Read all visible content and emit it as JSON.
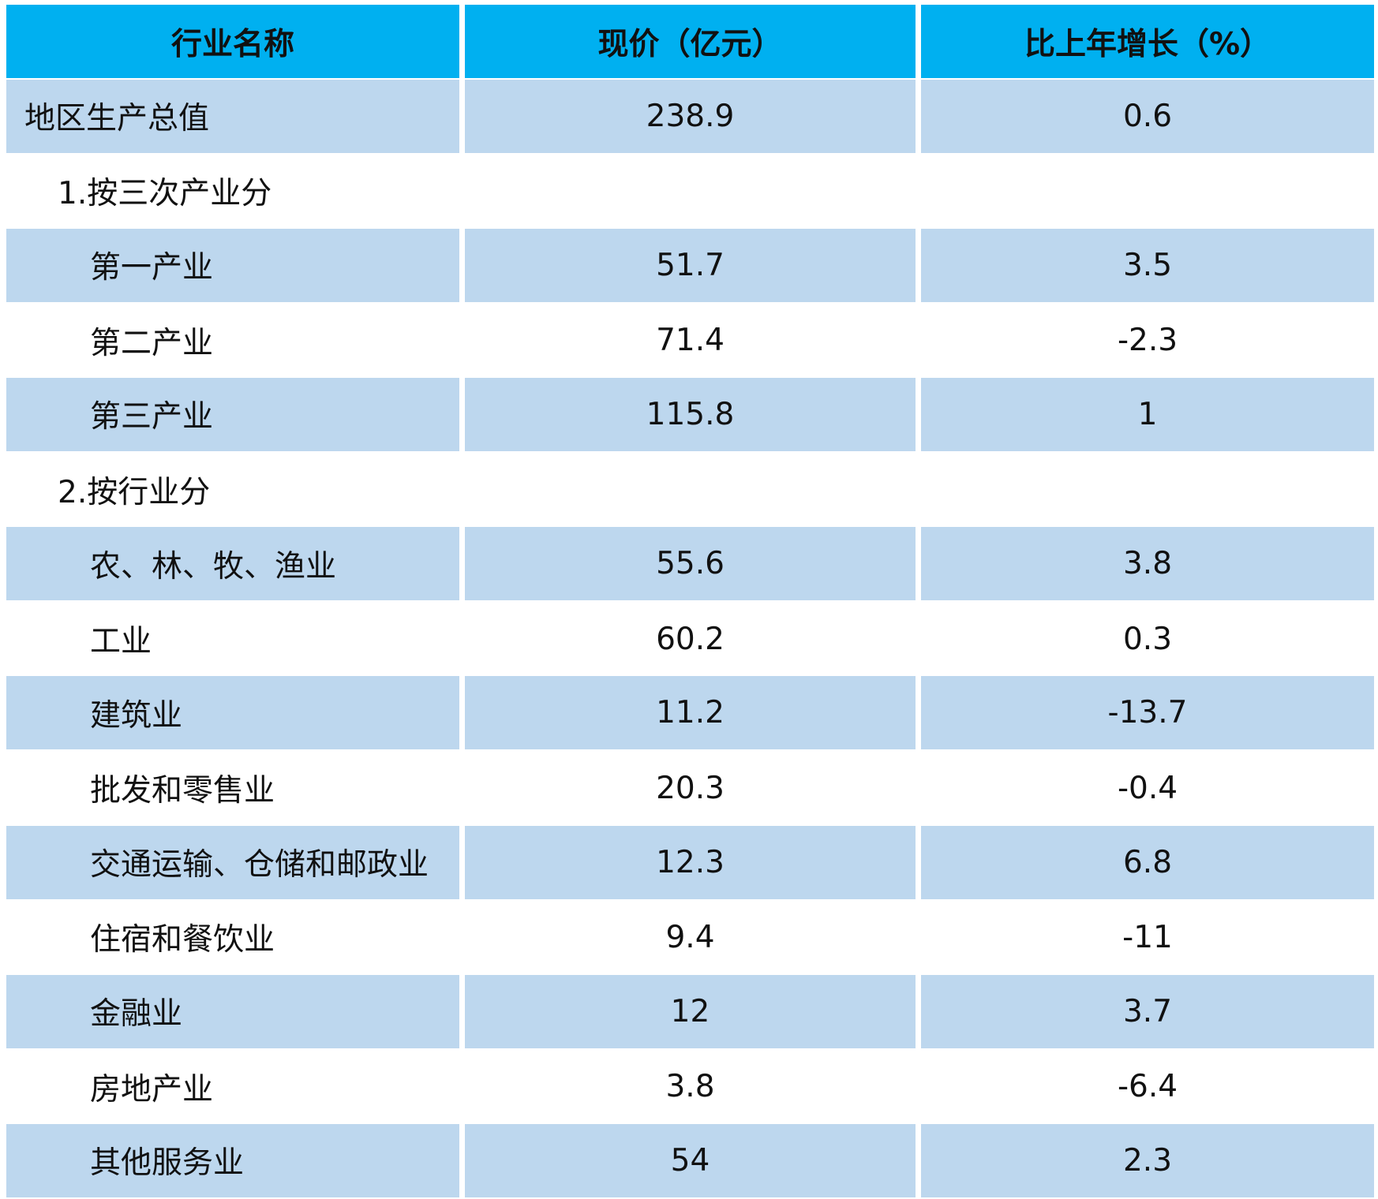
{
  "table": {
    "header": [
      "行业名称",
      "现价（亿元）",
      "比上年增长（%）"
    ],
    "rows": [
      [
        "地区生产总值",
        238.9,
        0.6
      ],
      [
        "1.按三次产业分"
      ],
      [
        "第一产业",
        51.7,
        3.5
      ],
      [
        "第二产业",
        71.4,
        -2.3
      ],
      [
        "第三产业",
        115.8,
        1
      ],
      [
        "2.按行业分"
      ],
      [
        "农、林、牧、渔业",
        55.6,
        3.8
      ],
      [
        "工业",
        60.2,
        0.3
      ],
      [
        "建筑业",
        11.2,
        -13.7
      ],
      [
        "批发和零售业",
        20.3,
        -0.4
      ],
      [
        "交通运输、仓储和邮政业",
        12.3,
        6.8
      ],
      [
        "住宿和餐饮业",
        9.4,
        -11
      ],
      [
        "金融业",
        12,
        3.7
      ],
      [
        "房地产业",
        3.8,
        -6.4
      ],
      [
        "其他服务业",
        54,
        2.3
      ]
    ]
  }
}
